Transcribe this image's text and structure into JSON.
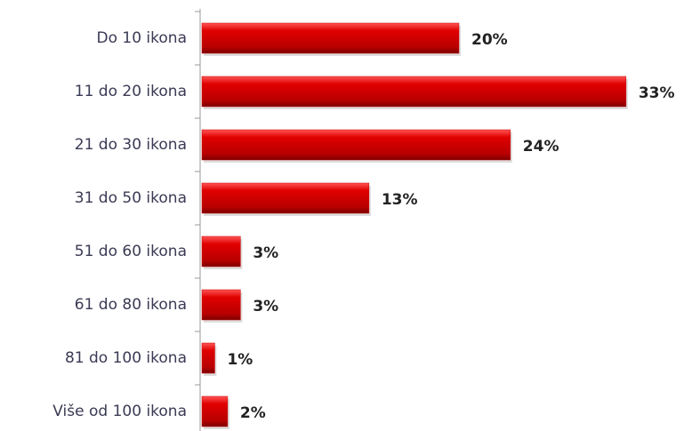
{
  "chart_data": {
    "type": "hbar",
    "categories": [
      "Do 10 ikona",
      "11 do 20 ikona",
      "21 do 30 ikona",
      "31 do 50 ikona",
      "51 do 60 ikona",
      "61 do 80 ikona",
      "81 do 100 ikona",
      "Više od 100 ikona"
    ],
    "values": [
      20,
      33,
      24,
      13,
      3,
      3,
      1,
      2
    ],
    "value_labels": [
      "20%",
      "33%",
      "24%",
      "13%",
      "3%",
      "3%",
      "1%",
      "2%"
    ],
    "color": "#cc0000"
  }
}
